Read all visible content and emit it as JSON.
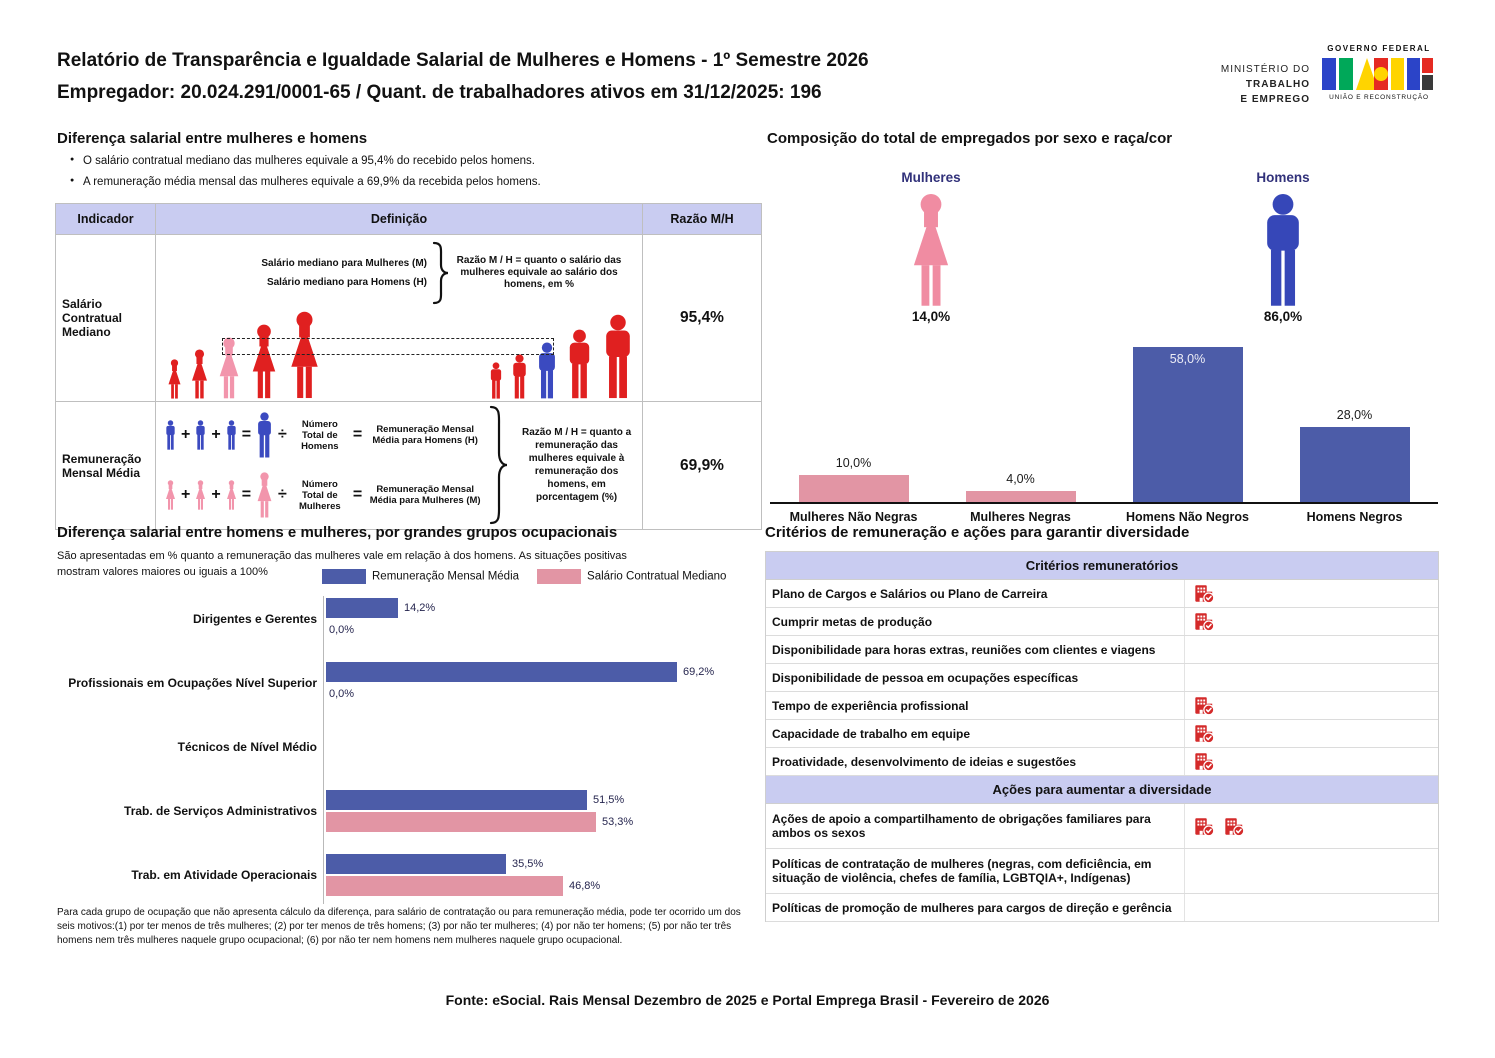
{
  "header": {
    "title_line1": "Relatório de Transparência e Igualdade Salarial de Mulheres e Homens - 1º Semestre 2026",
    "title_line2": "Empregador: 20.024.291/0001-65 / Quant. de trabalhadores ativos em 31/12/2025: 196",
    "ministry_lines": [
      "MINISTÉRIO DO",
      "TRABALHO",
      "E EMPREGO"
    ],
    "gov_logo": {
      "top": "GOVERNO FEDERAL",
      "bottom": "UNIÃO E RECONSTRUÇÃO"
    }
  },
  "salary_gap": {
    "title": "Diferença salarial entre mulheres e homens",
    "bullets": [
      "O salário contratual mediano das mulheres equivale a 95,4% do recebido pelos homens.",
      "A remuneração média mensal das mulheres equivale a 69,9% da recebida pelos homens."
    ],
    "col_indicator": "Indicador",
    "col_definition": "Definição",
    "col_ratio": "Razão M/H",
    "row1": {
      "indicator": "Salário Contratual Mediano",
      "label_women": "Salário mediano para Mulheres (M)",
      "label_men": "Salário mediano para Homens (H)",
      "note": "Razão M / H = quanto o salário das mulheres equivale ao salário dos homens, em %",
      "ratio": "95,4%"
    },
    "row2": {
      "indicator": "Remuneração Mensal Média",
      "men_divisor": "Número Total de Homens",
      "men_result": "Remuneração Mensal Média para Homens (H)",
      "women_divisor": "Número Total de Mulheres",
      "women_result": "Remuneração Mensal Média para Mulheres (M)",
      "note": "Razão M / H = quanto a remuneração das mulheres equivale à remuneração dos homens, em porcentagem (%)",
      "ratio": "69,9%",
      "plus": "+",
      "equals": "=",
      "divide": "÷"
    }
  },
  "composition": {
    "title": "Composição do total de empregados por sexo e raça/cor",
    "women_label": "Mulheres",
    "women_pct": "14,0%",
    "men_label": "Homens",
    "men_pct": "86,0%"
  },
  "occupational": {
    "title": "Diferença salarial entre homens e mulheres, por grandes grupos ocupacionais",
    "subtitle": "São apresentadas em % quanto a remuneração das mulheres vale em relação à dos homens. As situações positivas mostram valores maiores ou iguais a 100%",
    "legend": [
      "Remuneração Mensal Média",
      "Salário Contratual Mediano"
    ],
    "footnote": "Para cada grupo de ocupação que não apresenta cálculo da diferença, para salário de contratação ou para remuneração média, pode ter ocorrido um dos seis motivos:(1) por ter menos de três mulheres; (2) por ter menos de três homens; (3) por não ter mulheres; (4) por não ter homens; (5) por não ter três homens nem três mulheres naquele grupo ocupacional; (6) por não ter nem homens nem mulheres naquele grupo ocupacional."
  },
  "criteria": {
    "title": "Critérios de remuneração e ações para garantir diversidade",
    "section1": "Critérios remuneratórios",
    "rows1": [
      {
        "label": "Plano de Cargos e Salários ou Plano de Carreira",
        "icons": 1
      },
      {
        "label": "Cumprir metas de produção",
        "icons": 1
      },
      {
        "label": "Disponibilidade para horas extras, reuniões com clientes e viagens",
        "icons": 0
      },
      {
        "label": "Disponibilidade de pessoa em ocupações específicas",
        "icons": 0
      },
      {
        "label": "Tempo de experiência profissional",
        "icons": 1
      },
      {
        "label": "Capacidade de trabalho em equipe",
        "icons": 1
      },
      {
        "label": "Proatividade, desenvolvimento de ideias e sugestões",
        "icons": 1
      }
    ],
    "section2": "Ações para aumentar a diversidade",
    "rows2": [
      {
        "label": "Ações de apoio a compartilhamento de obrigações familiares para ambos os sexos",
        "icons": 2,
        "tall": true
      },
      {
        "label": "Políticas de contratação de mulheres (negras, com deficiência, em situação de violência, chefes de família, LGBTQIA+, Indígenas)",
        "icons": 0,
        "tall": true
      },
      {
        "label": "Políticas de promoção de mulheres para cargos de direção e gerência",
        "icons": 0,
        "tall": false
      }
    ]
  },
  "footer": {
    "source": "Fonte: eSocial. Rais Mensal Dezembro de 2025 e Portal Emprega Brasil - Fevereiro de 2026"
  },
  "colors": {
    "blue_bar": "#4c5ca8",
    "pink_bar": "#e295a4",
    "red_figure": "#e02020",
    "pink_figure": "#f295ac",
    "blue_figure": "#3b4ac0",
    "lavender": "#c9ccf1",
    "label_navy": "#31317a",
    "icon_red": "#d42a2a"
  },
  "chart_data": [
    {
      "type": "bar",
      "title": "Composição do total de empregados por sexo e raça/cor",
      "categories": [
        "Mulheres Não Negras",
        "Mulheres Negras",
        "Homens Não Negros",
        "Homens Negros"
      ],
      "values": [
        10.0,
        4.0,
        58.0,
        28.0
      ],
      "labels": [
        "10,0%",
        "4,0%",
        "58,0%",
        "28,0%"
      ],
      "bar_colors": [
        "#e295a4",
        "#e295a4",
        "#4c5ca8",
        "#4c5ca8"
      ],
      "xlabel": "",
      "ylabel": "",
      "ylim": [
        0,
        62
      ],
      "grid": false,
      "legend": false,
      "summary": {
        "Mulheres": 14.0,
        "Homens": 86.0
      }
    },
    {
      "type": "bar",
      "orientation": "horizontal",
      "title": "Diferença salarial entre homens e mulheres, por grandes grupos ocupacionais",
      "categories": [
        "Dirigentes e Gerentes",
        "Profissionais em Ocupações Nível Superior",
        "Técnicos de Nível Médio",
        "Trab. de Serviços Administrativos",
        "Trab. em Atividade Operacionais"
      ],
      "series": [
        {
          "name": "Remuneração Mensal Média",
          "color": "#4c5ca8",
          "values": [
            14.2,
            69.2,
            null,
            51.5,
            35.5
          ],
          "labels": [
            "14,2%",
            "69,2%",
            "",
            "51,5%",
            "35,5%"
          ]
        },
        {
          "name": "Salário Contratual Mediano",
          "color": "#e295a4",
          "values": [
            0.0,
            0.0,
            null,
            53.3,
            46.8
          ],
          "labels": [
            "0,0%",
            "0,0%",
            "",
            "53,3%",
            "46,8%"
          ]
        }
      ],
      "xlim": [
        0,
        75
      ],
      "grid": false,
      "legend_position": "top"
    }
  ]
}
